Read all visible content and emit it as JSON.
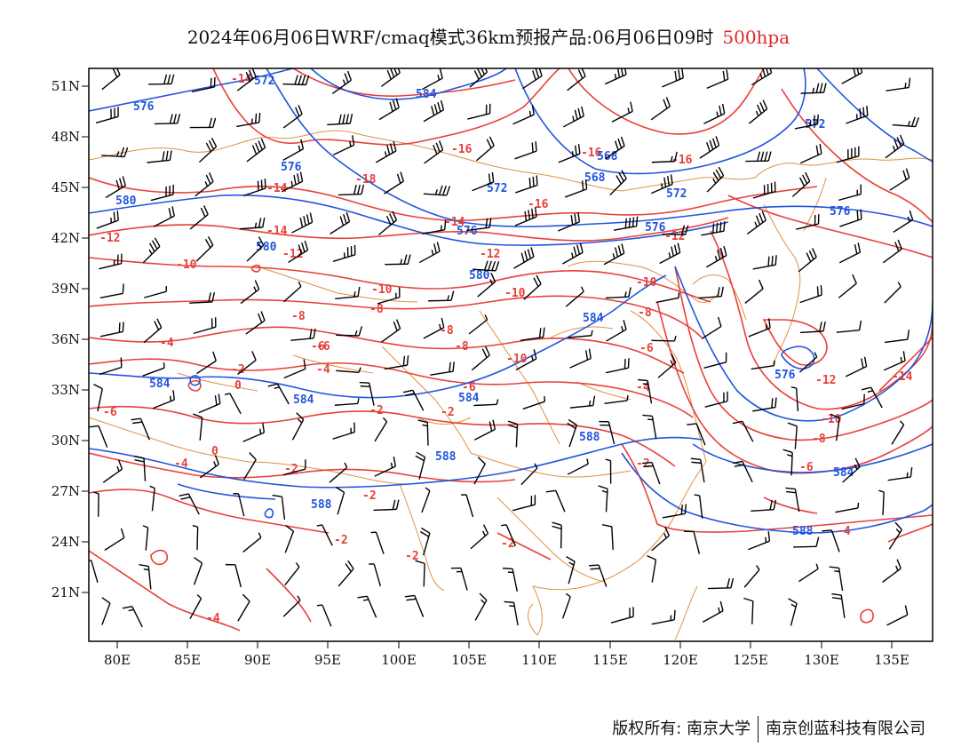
{
  "title": {
    "main": "2024年06月06日WRF/cmaq模式36km预报产品:06月06日09时",
    "level": "500hpa"
  },
  "axes": {
    "lon_ticks": [
      "80E",
      "85E",
      "90E",
      "95E",
      "100E",
      "105E",
      "110E",
      "115E",
      "120E",
      "125E",
      "130E",
      "135E"
    ],
    "lat_ticks": [
      "51N",
      "48N",
      "45N",
      "42N",
      "39N",
      "36N",
      "33N",
      "30N",
      "27N",
      "24N",
      "21N"
    ]
  },
  "colors": {
    "temperature": "#e8403a",
    "height": "#2255dd",
    "boundary": "#e09040",
    "wind": "#000000"
  },
  "contour_labels": {
    "temperature": [
      "-14",
      "-16",
      "-16",
      "-18",
      "-14",
      "-16",
      "-14",
      "-16",
      "-14",
      "-12",
      "-10",
      "-12",
      "-12",
      "-10",
      "-10",
      "-12",
      "-8",
      "-10",
      "-10",
      "-8",
      "-6",
      "-8",
      "-6",
      "-8",
      "-4",
      "-2",
      "-4",
      "-6",
      "-8",
      "-6",
      "-4",
      "-14",
      "-2",
      "-12",
      "-10",
      "-8",
      "-6",
      "-2",
      "-2",
      "-2",
      "-2",
      "-2",
      "-4",
      "0",
      "-4",
      "-4",
      "-6",
      "-2",
      "0",
      "-2"
    ],
    "height": [
      "572",
      "576",
      "584",
      "576",
      "572",
      "568",
      "580",
      "572",
      "576",
      "576",
      "568",
      "572",
      "580",
      "576",
      "580",
      "584",
      "584",
      "584",
      "588",
      "588",
      "588",
      "584",
      "576",
      "584",
      "588"
    ]
  },
  "footer": {
    "copyright": "版权所有: 南京大学",
    "company": "南京创蓝科技有限公司"
  }
}
